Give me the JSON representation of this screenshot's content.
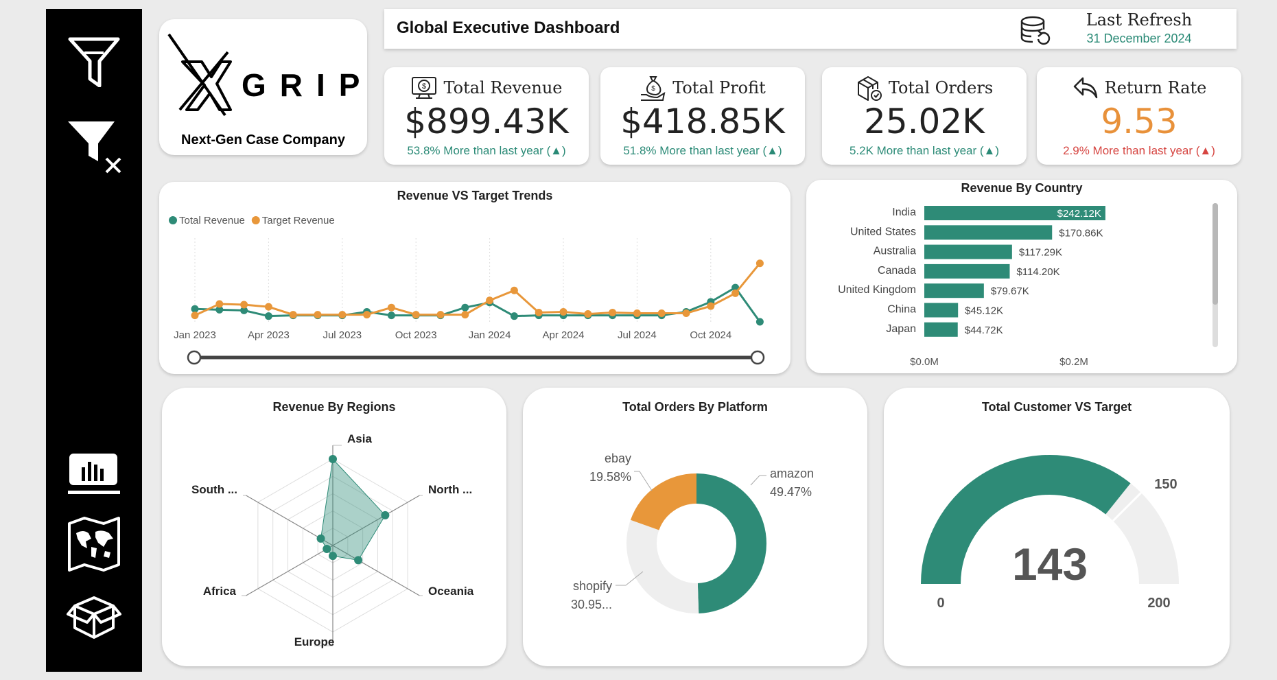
{
  "sidebar": {
    "items": [
      {
        "name": "filter-icon"
      },
      {
        "name": "clear-filter-icon"
      },
      {
        "name": "report-icon"
      },
      {
        "name": "map-icon"
      },
      {
        "name": "box-icon"
      }
    ]
  },
  "brand": {
    "logo_text": "GRIP",
    "logo_letter": "X",
    "tagline": "Next-Gen Case Company"
  },
  "header": {
    "title": "Global Executive Dashboard",
    "refresh_label": "Last Refresh",
    "refresh_date": "31 December 2024"
  },
  "kpis": {
    "revenue": {
      "label": "Total Revenue",
      "value": "$899.43K",
      "delta": "53.8% More than last year (▲)",
      "color": "#2a8a76",
      "icon": "money-screen-icon"
    },
    "profit": {
      "label": "Total Profit",
      "value": "$418.85K",
      "delta": "51.8% More than last year (▲)",
      "color": "#2a8a76",
      "icon": "money-bag-hand-icon"
    },
    "orders": {
      "label": "Total Orders",
      "value": "25.02K",
      "delta": "5.2K More than last year (▲)",
      "color": "#2a8a76",
      "icon": "package-check-icon"
    },
    "return_rate": {
      "label": "Return Rate",
      "value": "9.53",
      "delta": "2.9% More than last year (▲)",
      "color": "#d64541",
      "value_color": "#e8913a",
      "icon": "return-arrow-icon"
    }
  },
  "colors": {
    "teal": "#2e8b77",
    "orange": "#e8973a",
    "light_gray": "#eeeeee"
  },
  "revenue_trend": {
    "title": "Revenue VS Target Trends",
    "chart_data": {
      "type": "line",
      "x_ticks": [
        "Jan 2023",
        "Apr 2023",
        "Jul 2023",
        "Oct 2023",
        "Jan 2024",
        "Apr 2024",
        "Jul 2024",
        "Oct 2024"
      ],
      "series": [
        {
          "name": "Total Revenue",
          "color": "#2e8b77",
          "values": [
            18,
            17,
            16,
            8,
            9,
            9,
            9,
            14,
            9,
            9,
            9,
            20,
            27,
            8,
            9,
            9,
            9,
            9,
            9,
            9,
            14,
            28,
            48,
            0
          ]
        },
        {
          "name": "Target Revenue",
          "color": "#e8973a",
          "values": [
            9,
            25,
            24,
            21,
            10,
            10,
            10,
            10,
            20,
            10,
            10,
            10,
            30,
            44,
            13,
            14,
            11,
            13,
            12,
            12,
            12,
            22,
            40,
            82
          ]
        }
      ]
    }
  },
  "revenue_country": {
    "title": "Revenue By Country",
    "chart_data": {
      "type": "bar",
      "orientation": "horizontal",
      "categories": [
        "India",
        "United States",
        "Australia",
        "Canada",
        "United Kingdom",
        "China",
        "Japan"
      ],
      "values": [
        242.12,
        170.86,
        117.29,
        114.2,
        79.67,
        45.12,
        44.72
      ],
      "labels": [
        "$242.12K",
        "$170.86K",
        "$117.29K",
        "$114.20K",
        "$79.67K",
        "$45.12K",
        "$44.72K"
      ],
      "x_ticks": [
        "$0.0M",
        "$0.2M"
      ],
      "x_tick_values": [
        0,
        200
      ],
      "color": "#2e8b77"
    }
  },
  "revenue_regions": {
    "title": "Revenue By Regions",
    "chart_data": {
      "type": "radar",
      "axes": [
        "Asia",
        "North ...",
        "Oceania",
        "Europe",
        "Africa",
        "South ..."
      ],
      "values": [
        100,
        70,
        34,
        12,
        8,
        16
      ],
      "max": 100,
      "color": "#2e8b77"
    }
  },
  "orders_platform": {
    "title": "Total Orders By Platform",
    "chart_data": {
      "type": "pie",
      "slices": [
        {
          "name": "amazon",
          "pct_label": "49.47%",
          "value": 49.47,
          "color": "#2e8b77"
        },
        {
          "name": "shopify",
          "pct_label": "30.95...",
          "value": 30.95,
          "color": "#eeeeee"
        },
        {
          "name": "ebay",
          "pct_label": "19.58%",
          "value": 19.58,
          "color": "#e8973a"
        }
      ]
    }
  },
  "customer_target": {
    "title": "Total Customer VS Target",
    "chart_data": {
      "type": "gauge",
      "value": 143,
      "value_label": "143",
      "target": 150,
      "target_label": "150",
      "min": 0,
      "max": 200,
      "min_label": "0",
      "max_label": "200",
      "color": "#2e8b77"
    }
  }
}
